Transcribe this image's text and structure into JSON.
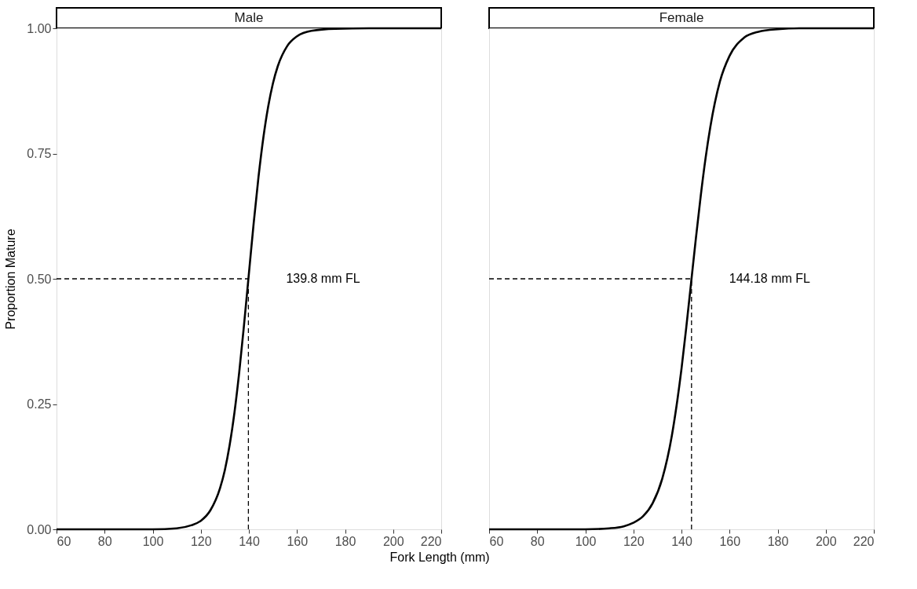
{
  "chart_data": [
    {
      "type": "line",
      "title": "Male",
      "xlabel": "Fork Length (mm)",
      "ylabel": "Proportion Mature",
      "xlim": [
        60,
        220
      ],
      "xticks": [
        60,
        80,
        100,
        120,
        140,
        160,
        180,
        200,
        220
      ],
      "ylim": [
        0,
        1
      ],
      "yticks": [
        {
          "value": 0,
          "label": "0.00"
        },
        {
          "value": 0.25,
          "label": "0.25"
        },
        {
          "value": 0.5,
          "label": "0.50"
        },
        {
          "value": 0.75,
          "label": "0.75"
        },
        {
          "value": 1,
          "label": "1.00"
        }
      ],
      "grid": false,
      "series": [
        {
          "color": "#000000",
          "line_style": "solid",
          "x": [
            60,
            80,
            100,
            110,
            116,
            120,
            124,
            128,
            130,
            132,
            134,
            136,
            138,
            140,
            142,
            144,
            146,
            148,
            150,
            152,
            156,
            160,
            166,
            176,
            190,
            220
          ],
          "values": [
            0.0,
            0.0,
            0.0,
            0.002,
            0.008,
            0.017,
            0.038,
            0.082,
            0.118,
            0.168,
            0.233,
            0.314,
            0.409,
            0.51,
            0.611,
            0.703,
            0.781,
            0.843,
            0.89,
            0.924,
            0.965,
            0.984,
            0.995,
            0.999,
            1.0,
            1.0
          ]
        },
        {
          "color": "#000000",
          "line_style": "dashed",
          "x": [
            60,
            139.8
          ],
          "values": [
            0.5,
            0.5
          ]
        },
        {
          "color": "#000000",
          "line_style": "dashed",
          "x": [
            139.8,
            139.8
          ],
          "values": [
            0,
            0.5
          ]
        }
      ],
      "annotations": [
        {
          "text": "139.8 mm FL",
          "x": 139.8,
          "y": 0.5
        }
      ]
    },
    {
      "type": "line",
      "title": "Female",
      "xlim": [
        60,
        220
      ],
      "xticks": [
        60,
        80,
        100,
        120,
        140,
        160,
        180,
        200,
        220
      ],
      "ylim": [
        0,
        1
      ],
      "tick_labels": "x",
      "grid": false,
      "series": [
        {
          "color": "#000000",
          "line_style": "solid",
          "x": [
            60,
            80,
            100,
            110,
            116,
            120,
            124,
            128,
            132,
            136,
            138,
            140,
            142,
            144,
            146,
            148,
            150,
            152,
            156,
            160,
            166,
            172,
            180,
            190,
            220
          ],
          "values": [
            0.0,
            0.0,
            0.0,
            0.002,
            0.006,
            0.013,
            0.026,
            0.052,
            0.101,
            0.187,
            0.248,
            0.32,
            0.403,
            0.492,
            0.581,
            0.665,
            0.74,
            0.803,
            0.894,
            0.945,
            0.981,
            0.993,
            0.998,
            1.0,
            1.0
          ]
        },
        {
          "color": "#000000",
          "line_style": "dashed",
          "x": [
            60,
            144.18
          ],
          "values": [
            0.5,
            0.5
          ]
        },
        {
          "color": "#000000",
          "line_style": "dashed",
          "x": [
            144.18,
            144.18
          ],
          "values": [
            0,
            0.5
          ]
        }
      ],
      "annotations": [
        {
          "text": "144.18 mm FL",
          "x": 144.18,
          "y": 0.5
        }
      ]
    }
  ]
}
